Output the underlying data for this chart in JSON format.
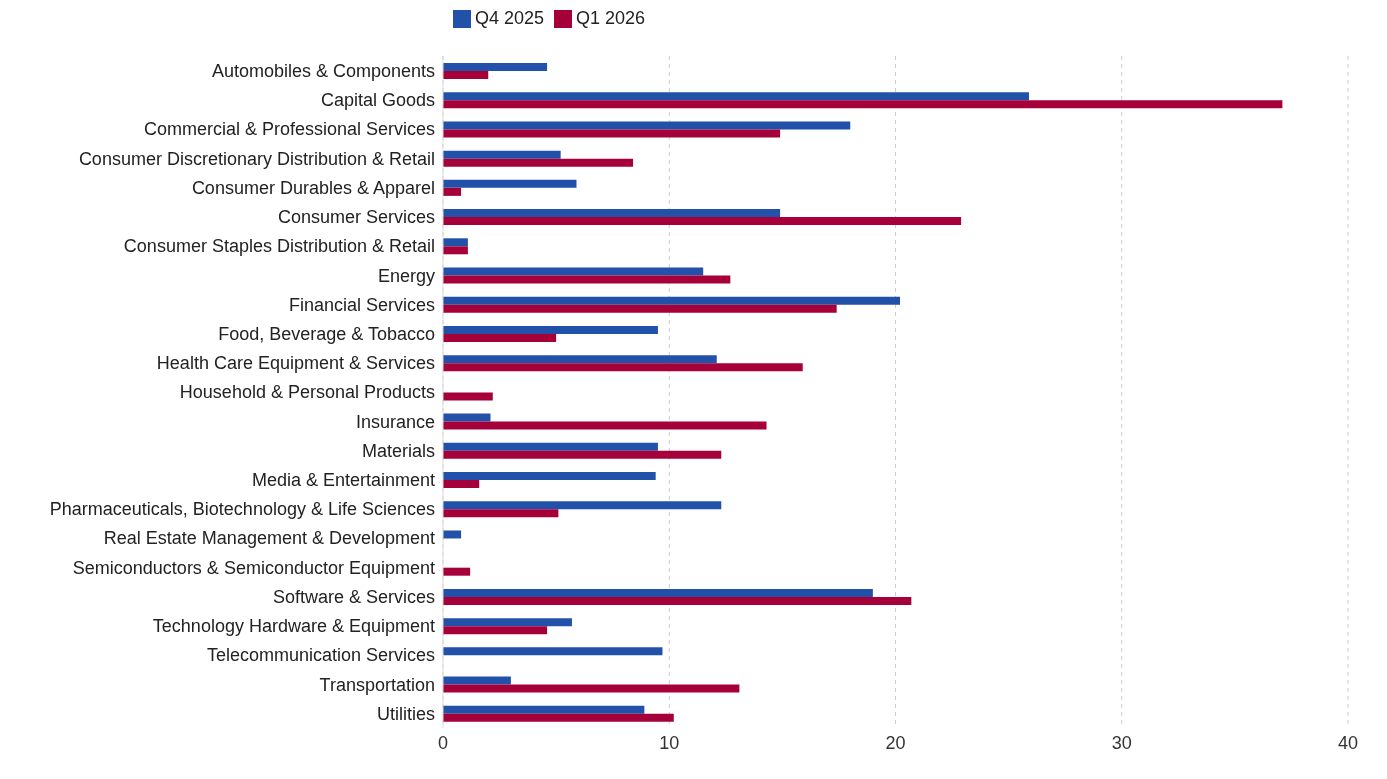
{
  "chart_data": {
    "type": "bar",
    "orientation": "horizontal",
    "categories": [
      "Automobiles & Components",
      "Capital Goods",
      "Commercial & Professional Services",
      "Consumer Discretionary Distribution & Retail",
      "Consumer Durables & Apparel",
      "Consumer Services",
      "Consumer Staples Distribution & Retail",
      "Energy",
      "Financial Services",
      "Food, Beverage & Tobacco",
      "Health Care Equipment & Services",
      "Household & Personal Products",
      "Insurance",
      "Materials",
      "Media & Entertainment",
      "Pharmaceuticals, Biotechnology & Life Sciences",
      "Real Estate Management & Development",
      "Semiconductors & Semiconductor Equipment",
      "Software & Services",
      "Technology Hardware & Equipment",
      "Telecommunication Services",
      "Transportation",
      "Utilities"
    ],
    "series": [
      {
        "name": "Q4 2025",
        "color": "#2151a8",
        "values": [
          4.6,
          25.9,
          18.0,
          5.2,
          5.9,
          14.9,
          1.1,
          11.5,
          20.2,
          9.5,
          12.1,
          0,
          2.1,
          9.5,
          9.4,
          12.3,
          0.8,
          0,
          19.0,
          5.7,
          9.7,
          3.0,
          8.9
        ]
      },
      {
        "name": "Q1 2026",
        "color": "#a6003a",
        "values": [
          2.0,
          37.1,
          14.9,
          8.4,
          0.8,
          22.9,
          1.1,
          12.7,
          17.4,
          5.0,
          15.9,
          2.2,
          14.3,
          12.3,
          1.6,
          5.1,
          0,
          1.2,
          20.7,
          4.6,
          0,
          13.1,
          10.2
        ]
      }
    ],
    "xlim": [
      0,
      40
    ],
    "xticks": [
      0,
      10,
      20,
      30,
      40
    ],
    "grid": "x",
    "legend": "top"
  }
}
